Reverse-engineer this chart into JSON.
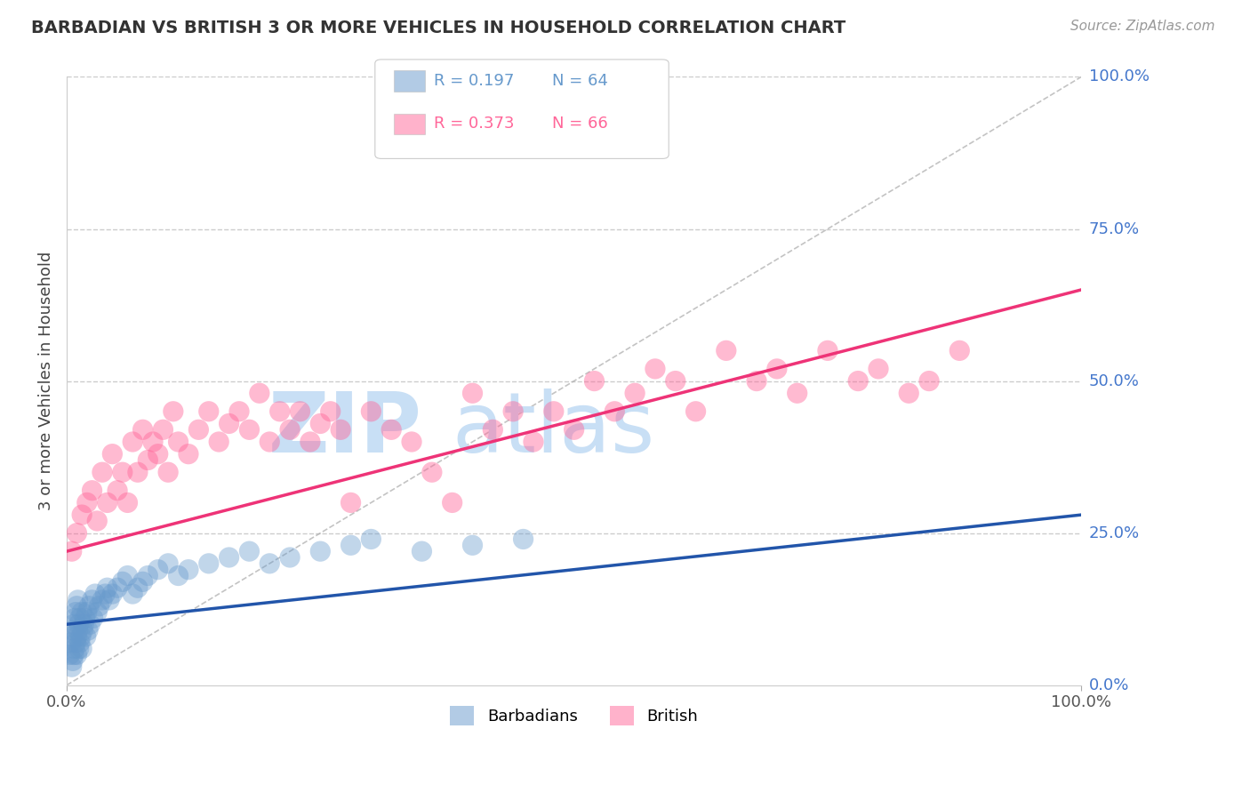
{
  "title": "BARBADIAN VS BRITISH 3 OR MORE VEHICLES IN HOUSEHOLD CORRELATION CHART",
  "source": "Source: ZipAtlas.com",
  "ylabel": "3 or more Vehicles in Household",
  "xlim": [
    0,
    100
  ],
  "ylim": [
    0,
    100
  ],
  "barbadian_color": "#6699cc",
  "british_color": "#ff6699",
  "trendline_barbadian_color": "#2255aa",
  "trendline_british_color": "#ee3377",
  "watermark_zip_color": "#c8dff5",
  "watermark_atlas_color": "#c8dff5",
  "barbadian_R": 0.197,
  "barbadian_N": 64,
  "british_R": 0.373,
  "british_N": 66,
  "right_tick_color": "#4477cc",
  "barbadian_x": [
    0.3,
    0.4,
    0.5,
    0.5,
    0.6,
    0.6,
    0.7,
    0.7,
    0.8,
    0.8,
    0.9,
    0.9,
    1.0,
    1.0,
    1.0,
    1.1,
    1.1,
    1.2,
    1.2,
    1.3,
    1.3,
    1.4,
    1.5,
    1.5,
    1.6,
    1.7,
    1.8,
    1.9,
    2.0,
    2.1,
    2.2,
    2.3,
    2.5,
    2.6,
    2.8,
    3.0,
    3.2,
    3.5,
    3.8,
    4.0,
    4.2,
    4.5,
    5.0,
    5.5,
    6.0,
    6.5,
    7.0,
    7.5,
    8.0,
    9.0,
    10.0,
    11.0,
    12.0,
    14.0,
    16.0,
    18.0,
    20.0,
    22.0,
    25.0,
    28.0,
    30.0,
    35.0,
    40.0,
    45.0
  ],
  "barbadian_y": [
    5,
    7,
    3,
    8,
    4,
    9,
    5,
    10,
    6,
    11,
    7,
    12,
    8,
    13,
    5,
    9,
    14,
    6,
    10,
    7,
    11,
    8,
    12,
    6,
    9,
    10,
    11,
    8,
    12,
    9,
    13,
    10,
    14,
    11,
    15,
    12,
    13,
    14,
    15,
    16,
    14,
    15,
    16,
    17,
    18,
    15,
    16,
    17,
    18,
    19,
    20,
    18,
    19,
    20,
    21,
    22,
    20,
    21,
    22,
    23,
    24,
    22,
    23,
    24
  ],
  "british_x": [
    0.5,
    1.0,
    1.5,
    2.0,
    2.5,
    3.0,
    3.5,
    4.0,
    4.5,
    5.0,
    5.5,
    6.0,
    6.5,
    7.0,
    7.5,
    8.0,
    8.5,
    9.0,
    9.5,
    10.0,
    10.5,
    11.0,
    12.0,
    13.0,
    14.0,
    15.0,
    16.0,
    17.0,
    18.0,
    19.0,
    20.0,
    21.0,
    22.0,
    23.0,
    24.0,
    25.0,
    26.0,
    27.0,
    28.0,
    30.0,
    32.0,
    34.0,
    36.0,
    38.0,
    40.0,
    42.0,
    44.0,
    46.0,
    48.0,
    50.0,
    52.0,
    54.0,
    56.0,
    58.0,
    60.0,
    62.0,
    65.0,
    68.0,
    70.0,
    72.0,
    75.0,
    78.0,
    80.0,
    83.0,
    85.0,
    88.0
  ],
  "british_y": [
    22,
    25,
    28,
    30,
    32,
    27,
    35,
    30,
    38,
    32,
    35,
    30,
    40,
    35,
    42,
    37,
    40,
    38,
    42,
    35,
    45,
    40,
    38,
    42,
    45,
    40,
    43,
    45,
    42,
    48,
    40,
    45,
    42,
    45,
    40,
    43,
    45,
    42,
    30,
    45,
    42,
    40,
    35,
    30,
    48,
    42,
    45,
    40,
    45,
    42,
    50,
    45,
    48,
    52,
    50,
    45,
    55,
    50,
    52,
    48,
    55,
    50,
    52,
    48,
    50,
    55
  ],
  "barbadian_trendline_x": [
    0,
    100
  ],
  "barbadian_trendline_y": [
    10,
    28
  ],
  "british_trendline_x": [
    0,
    100
  ],
  "british_trendline_y": [
    22,
    65
  ]
}
